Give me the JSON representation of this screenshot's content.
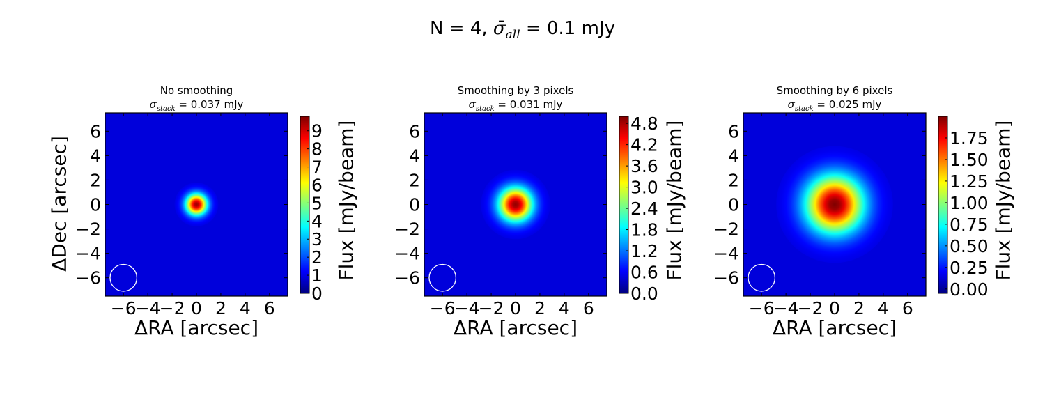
{
  "figure": {
    "suptitle_prefix": "N = 4, ",
    "suptitle_sigma": "σ̄",
    "suptitle_sub": "all",
    "suptitle_suffix": " = 0.1 mJy"
  },
  "colormap": [
    "#00007f",
    "#0000ff",
    "#007fff",
    "#00ffff",
    "#7fff7f",
    "#ffff00",
    "#ff7f00",
    "#ff0000",
    "#7f0000"
  ],
  "chart_data": [
    {
      "type": "heatmap",
      "title_line1": "No smoothing",
      "title_sigma": "σ",
      "title_sub": "stack",
      "title_rest": " = 0.037 mJy",
      "xlabel": "ΔRA [arcsec]",
      "ylabel": "ΔDec [arcsec]",
      "xlim": [
        -7.5,
        7.5
      ],
      "ylim": [
        -7.5,
        7.5
      ],
      "xticks": [
        -6,
        -4,
        -2,
        0,
        2,
        4,
        6
      ],
      "yticks": [
        -6,
        -4,
        -2,
        0,
        2,
        4,
        6
      ],
      "tick_labels": [
        "−6",
        "−4",
        "−2",
        "0",
        "2",
        "4",
        "6"
      ],
      "source": {
        "x": 0,
        "y": 0,
        "peak": 9.5,
        "sigma_arcsec": 0.6
      },
      "beam": {
        "x": -6,
        "y": -6,
        "radius_arcsec": 1.1
      },
      "colorbar": {
        "label": "Flux [mJy/beam]",
        "range": [
          0,
          9.8
        ],
        "ticks": [
          0,
          1,
          2,
          3,
          4,
          5,
          6,
          7,
          8,
          9
        ],
        "tick_labels": [
          "0",
          "1",
          "2",
          "3",
          "4",
          "5",
          "6",
          "7",
          "8",
          "9"
        ]
      }
    },
    {
      "type": "heatmap",
      "title_line1": "Smoothing by 3 pixels",
      "title_sigma": "σ",
      "title_sub": "stack",
      "title_rest": " = 0.031 mJy",
      "xlabel": "ΔRA [arcsec]",
      "ylabel": "",
      "xlim": [
        -7.5,
        7.5
      ],
      "ylim": [
        -7.5,
        7.5
      ],
      "xticks": [
        -6,
        -4,
        -2,
        0,
        2,
        4,
        6
      ],
      "yticks": [
        -6,
        -4,
        -2,
        0,
        2,
        4,
        6
      ],
      "tick_labels": [
        "−6",
        "−4",
        "−2",
        "0",
        "2",
        "4",
        "6"
      ],
      "source": {
        "x": 0,
        "y": 0,
        "peak": 4.9,
        "sigma_arcsec": 0.95
      },
      "beam": {
        "x": -6,
        "y": -6,
        "radius_arcsec": 1.1
      },
      "colorbar": {
        "label": "Flux [mJy/beam]",
        "range": [
          0,
          5.0
        ],
        "ticks": [
          0.0,
          0.6,
          1.2,
          1.8,
          2.4,
          3.0,
          3.6,
          4.2,
          4.8
        ],
        "tick_labels": [
          "0.0",
          "0.6",
          "1.2",
          "1.8",
          "2.4",
          "3.0",
          "3.6",
          "4.2",
          "4.8"
        ]
      }
    },
    {
      "type": "heatmap",
      "title_line1": "Smoothing by 6 pixels",
      "title_sigma": "σ",
      "title_sub": "stack",
      "title_rest": " = 0.025 mJy",
      "xlabel": "ΔRA [arcsec]",
      "ylabel": "",
      "xlim": [
        -7.5,
        7.5
      ],
      "ylim": [
        -7.5,
        7.5
      ],
      "xticks": [
        -6,
        -4,
        -2,
        0,
        2,
        4,
        6
      ],
      "yticks": [
        -6,
        -4,
        -2,
        0,
        2,
        4,
        6
      ],
      "tick_labels": [
        "−6",
        "−4",
        "−2",
        "0",
        "2",
        "4",
        "6"
      ],
      "source": {
        "x": 0,
        "y": 0,
        "peak": 2.0,
        "sigma_arcsec": 1.6
      },
      "beam": {
        "x": -6,
        "y": -6,
        "radius_arcsec": 1.1
      },
      "colorbar": {
        "label": "Flux [mJy/beam]",
        "range": [
          -0.05,
          2.0
        ],
        "ticks": [
          0.0,
          0.25,
          0.5,
          0.75,
          1.0,
          1.25,
          1.5,
          1.75
        ],
        "tick_labels": [
          "0.00",
          "0.25",
          "0.50",
          "0.75",
          "1.00",
          "1.25",
          "1.50",
          "1.75"
        ]
      }
    }
  ]
}
